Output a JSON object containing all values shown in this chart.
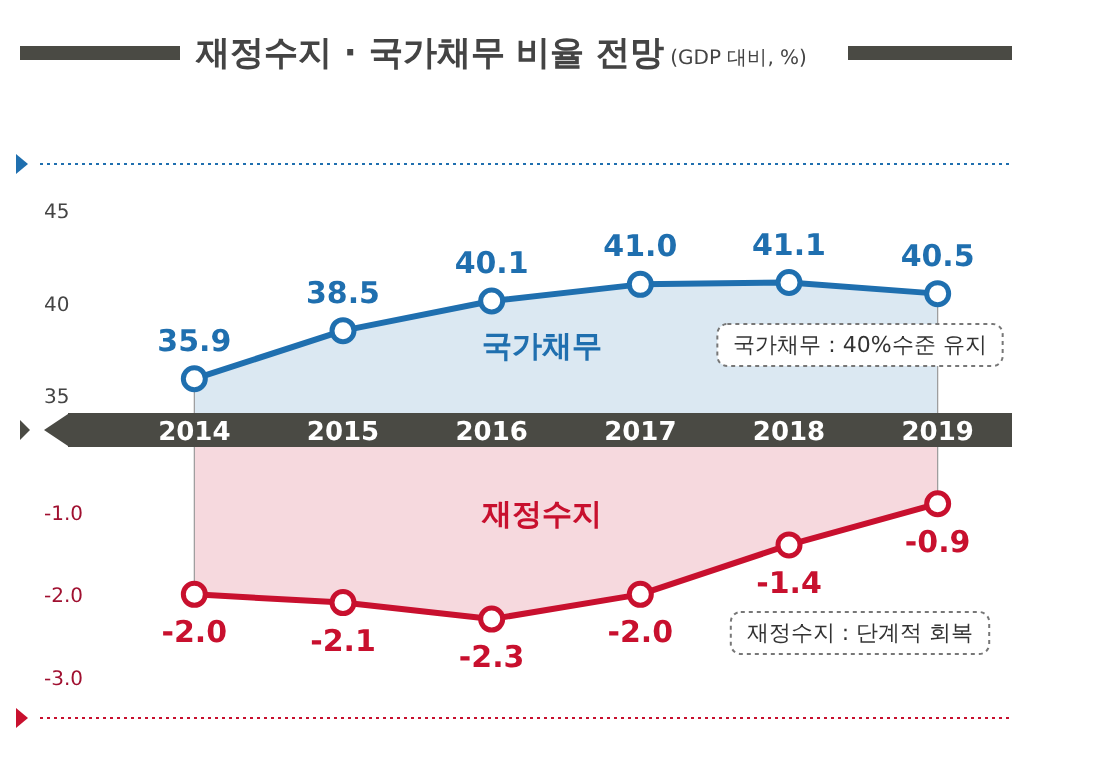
{
  "chart_data": [
    {
      "type": "area",
      "title": "재정수지 · 국가채무 비율 전망",
      "subtitle": "(GDP 대비, %)",
      "categories": [
        "2014",
        "2015",
        "2016",
        "2017",
        "2018",
        "2019"
      ],
      "series": [
        {
          "color": "#1f6faf",
          "values": [
            35.9,
            38.5,
            40.1,
            41.0,
            41.1,
            40.5
          ],
          "value_labels": [
            "35.9",
            "38.5",
            "40.1",
            "41.0",
            "41.1",
            "40.5"
          ]
        }
      ],
      "ylim": [
        34,
        47.5
      ],
      "yticks": [
        35,
        40,
        45
      ],
      "marker": "circle",
      "grid": false,
      "annotations": [
        "국가채무",
        "국가채무 : 40%수준 유지"
      ]
    },
    {
      "type": "area",
      "categories": [
        "2014",
        "2015",
        "2016",
        "2017",
        "2018",
        "2019"
      ],
      "series": [
        {
          "color": "#c8102e",
          "values": [
            -2.0,
            -2.1,
            -2.3,
            -2.0,
            -1.4,
            -0.9
          ],
          "value_labels": [
            "-2.0",
            "-2.1",
            "-2.3",
            "-2.0",
            "-1.4",
            "-0.9"
          ]
        }
      ],
      "ylim": [
        -3.5,
        -0.2
      ],
      "yticks": [
        {
          "value": -1,
          "label": "-1.0"
        },
        {
          "value": -2,
          "label": "-2.0"
        },
        {
          "value": -3,
          "label": "-3.0"
        }
      ],
      "marker": "circle",
      "grid": false,
      "tick_labels": "y",
      "annotations": [
        "재정수지",
        "재정수지 : 단계적 회복"
      ]
    }
  ]
}
